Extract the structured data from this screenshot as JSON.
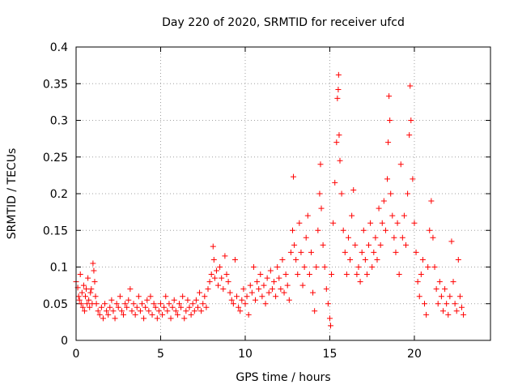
{
  "chart_data": {
    "type": "scatter",
    "title": "Day 220 of 2020, SRMTID for receiver ufcd",
    "xlabel": "GPS time / hours",
    "ylabel": "SRMTID / TECUs",
    "xlim": [
      0,
      24.5
    ],
    "ylim": [
      0,
      0.4
    ],
    "xticks": [
      0,
      5,
      10,
      15,
      20
    ],
    "xtick_labels": [
      "0",
      "5",
      "10",
      "15",
      "20"
    ],
    "yticks": [
      0,
      0.05,
      0.1,
      0.15,
      0.2,
      0.25,
      0.3,
      0.35,
      0.4
    ],
    "ytick_labels": [
      "0",
      "0.05",
      "0.1",
      "0.15",
      "0.2",
      "0.25",
      "0.3",
      "0.35",
      "0.4"
    ],
    "grid": true,
    "marker": "+",
    "color": "#ff0000",
    "series": [
      {
        "name": "SRMTID",
        "points": [
          [
            0.0,
            0.08
          ],
          [
            0.1,
            0.072
          ],
          [
            0.15,
            0.06
          ],
          [
            0.2,
            0.055
          ],
          [
            0.25,
            0.09
          ],
          [
            0.3,
            0.05
          ],
          [
            0.35,
            0.065
          ],
          [
            0.4,
            0.045
          ],
          [
            0.45,
            0.075
          ],
          [
            0.5,
            0.04
          ],
          [
            0.55,
            0.06
          ],
          [
            0.6,
            0.07
          ],
          [
            0.65,
            0.05
          ],
          [
            0.7,
            0.085
          ],
          [
            0.75,
            0.055
          ],
          [
            0.8,
            0.045
          ],
          [
            0.85,
            0.065
          ],
          [
            0.9,
            0.07
          ],
          [
            0.95,
            0.05
          ],
          [
            1.0,
            0.105
          ],
          [
            1.05,
            0.095
          ],
          [
            1.1,
            0.08
          ],
          [
            1.15,
            0.06
          ],
          [
            1.2,
            0.05
          ],
          [
            1.3,
            0.04
          ],
          [
            1.4,
            0.035
          ],
          [
            1.5,
            0.045
          ],
          [
            1.6,
            0.03
          ],
          [
            1.7,
            0.05
          ],
          [
            1.8,
            0.04
          ],
          [
            1.9,
            0.035
          ],
          [
            2.0,
            0.045
          ],
          [
            2.1,
            0.055
          ],
          [
            2.2,
            0.04
          ],
          [
            2.3,
            0.03
          ],
          [
            2.4,
            0.05
          ],
          [
            2.5,
            0.045
          ],
          [
            2.6,
            0.06
          ],
          [
            2.7,
            0.04
          ],
          [
            2.8,
            0.035
          ],
          [
            2.9,
            0.05
          ],
          [
            3.0,
            0.045
          ],
          [
            3.1,
            0.055
          ],
          [
            3.2,
            0.07
          ],
          [
            3.3,
            0.04
          ],
          [
            3.4,
            0.05
          ],
          [
            3.5,
            0.035
          ],
          [
            3.6,
            0.045
          ],
          [
            3.7,
            0.06
          ],
          [
            3.8,
            0.04
          ],
          [
            3.9,
            0.05
          ],
          [
            4.0,
            0.03
          ],
          [
            4.1,
            0.045
          ],
          [
            4.2,
            0.055
          ],
          [
            4.3,
            0.04
          ],
          [
            4.4,
            0.06
          ],
          [
            4.5,
            0.035
          ],
          [
            4.6,
            0.05
          ],
          [
            4.7,
            0.045
          ],
          [
            4.8,
            0.03
          ],
          [
            4.9,
            0.04
          ],
          [
            5.0,
            0.05
          ],
          [
            5.1,
            0.035
          ],
          [
            5.2,
            0.045
          ],
          [
            5.3,
            0.06
          ],
          [
            5.4,
            0.04
          ],
          [
            5.5,
            0.05
          ],
          [
            5.6,
            0.03
          ],
          [
            5.7,
            0.045
          ],
          [
            5.8,
            0.055
          ],
          [
            5.9,
            0.04
          ],
          [
            6.0,
            0.035
          ],
          [
            6.1,
            0.05
          ],
          [
            6.2,
            0.045
          ],
          [
            6.3,
            0.06
          ],
          [
            6.4,
            0.03
          ],
          [
            6.5,
            0.04
          ],
          [
            6.6,
            0.055
          ],
          [
            6.7,
            0.045
          ],
          [
            6.8,
            0.035
          ],
          [
            6.9,
            0.05
          ],
          [
            7.0,
            0.04
          ],
          [
            7.1,
            0.055
          ],
          [
            7.2,
            0.045
          ],
          [
            7.3,
            0.065
          ],
          [
            7.4,
            0.04
          ],
          [
            7.5,
            0.05
          ],
          [
            7.6,
            0.06
          ],
          [
            7.7,
            0.045
          ],
          [
            7.8,
            0.07
          ],
          [
            7.9,
            0.08
          ],
          [
            8.0,
            0.09
          ],
          [
            8.1,
            0.128
          ],
          [
            8.15,
            0.11
          ],
          [
            8.2,
            0.085
          ],
          [
            8.3,
            0.095
          ],
          [
            8.4,
            0.075
          ],
          [
            8.5,
            0.1
          ],
          [
            8.6,
            0.085
          ],
          [
            8.7,
            0.07
          ],
          [
            8.8,
            0.115
          ],
          [
            8.9,
            0.09
          ],
          [
            9.0,
            0.08
          ],
          [
            9.1,
            0.065
          ],
          [
            9.2,
            0.055
          ],
          [
            9.3,
            0.05
          ],
          [
            9.4,
            0.11
          ],
          [
            9.5,
            0.06
          ],
          [
            9.6,
            0.045
          ],
          [
            9.7,
            0.04
          ],
          [
            9.8,
            0.055
          ],
          [
            9.9,
            0.07
          ],
          [
            10.0,
            0.05
          ],
          [
            10.1,
            0.06
          ],
          [
            10.2,
            0.035
          ],
          [
            10.3,
            0.075
          ],
          [
            10.4,
            0.065
          ],
          [
            10.5,
            0.1
          ],
          [
            10.6,
            0.055
          ],
          [
            10.7,
            0.08
          ],
          [
            10.8,
            0.07
          ],
          [
            10.9,
            0.09
          ],
          [
            11.0,
            0.06
          ],
          [
            11.1,
            0.075
          ],
          [
            11.2,
            0.05
          ],
          [
            11.3,
            0.085
          ],
          [
            11.4,
            0.065
          ],
          [
            11.5,
            0.095
          ],
          [
            11.6,
            0.07
          ],
          [
            11.7,
            0.08
          ],
          [
            11.8,
            0.06
          ],
          [
            11.9,
            0.1
          ],
          [
            12.0,
            0.085
          ],
          [
            12.1,
            0.07
          ],
          [
            12.2,
            0.11
          ],
          [
            12.3,
            0.065
          ],
          [
            12.4,
            0.09
          ],
          [
            12.5,
            0.075
          ],
          [
            12.6,
            0.055
          ],
          [
            12.7,
            0.12
          ],
          [
            12.8,
            0.15
          ],
          [
            12.85,
            0.223
          ],
          [
            12.9,
            0.13
          ],
          [
            13.0,
            0.11
          ],
          [
            13.1,
            0.09
          ],
          [
            13.2,
            0.16
          ],
          [
            13.3,
            0.12
          ],
          [
            13.4,
            0.075
          ],
          [
            13.5,
            0.1
          ],
          [
            13.6,
            0.14
          ],
          [
            13.7,
            0.17
          ],
          [
            13.8,
            0.09
          ],
          [
            13.9,
            0.12
          ],
          [
            14.0,
            0.065
          ],
          [
            14.1,
            0.04
          ],
          [
            14.2,
            0.1
          ],
          [
            14.3,
            0.15
          ],
          [
            14.4,
            0.2
          ],
          [
            14.45,
            0.24
          ],
          [
            14.5,
            0.18
          ],
          [
            14.6,
            0.13
          ],
          [
            14.7,
            0.1
          ],
          [
            14.8,
            0.07
          ],
          [
            14.9,
            0.05
          ],
          [
            15.0,
            0.03
          ],
          [
            15.05,
            0.02
          ],
          [
            15.1,
            0.09
          ],
          [
            15.2,
            0.16
          ],
          [
            15.3,
            0.215
          ],
          [
            15.4,
            0.27
          ],
          [
            15.45,
            0.33
          ],
          [
            15.5,
            0.342
          ],
          [
            15.52,
            0.362
          ],
          [
            15.55,
            0.28
          ],
          [
            15.6,
            0.245
          ],
          [
            15.7,
            0.2
          ],
          [
            15.8,
            0.15
          ],
          [
            15.9,
            0.12
          ],
          [
            16.0,
            0.09
          ],
          [
            16.1,
            0.14
          ],
          [
            16.2,
            0.11
          ],
          [
            16.3,
            0.17
          ],
          [
            16.4,
            0.205
          ],
          [
            16.5,
            0.13
          ],
          [
            16.6,
            0.09
          ],
          [
            16.7,
            0.1
          ],
          [
            16.8,
            0.08
          ],
          [
            16.9,
            0.12
          ],
          [
            17.0,
            0.15
          ],
          [
            17.1,
            0.11
          ],
          [
            17.2,
            0.09
          ],
          [
            17.3,
            0.13
          ],
          [
            17.4,
            0.16
          ],
          [
            17.5,
            0.1
          ],
          [
            17.6,
            0.12
          ],
          [
            17.7,
            0.14
          ],
          [
            17.8,
            0.11
          ],
          [
            17.9,
            0.18
          ],
          [
            18.0,
            0.13
          ],
          [
            18.1,
            0.16
          ],
          [
            18.2,
            0.19
          ],
          [
            18.3,
            0.15
          ],
          [
            18.4,
            0.22
          ],
          [
            18.45,
            0.27
          ],
          [
            18.5,
            0.333
          ],
          [
            18.55,
            0.3
          ],
          [
            18.6,
            0.2
          ],
          [
            18.7,
            0.17
          ],
          [
            18.8,
            0.14
          ],
          [
            18.9,
            0.12
          ],
          [
            19.0,
            0.16
          ],
          [
            19.1,
            0.09
          ],
          [
            19.2,
            0.24
          ],
          [
            19.3,
            0.14
          ],
          [
            19.4,
            0.17
          ],
          [
            19.5,
            0.13
          ],
          [
            19.6,
            0.2
          ],
          [
            19.7,
            0.28
          ],
          [
            19.75,
            0.347
          ],
          [
            19.8,
            0.3
          ],
          [
            19.9,
            0.22
          ],
          [
            20.0,
            0.16
          ],
          [
            20.1,
            0.12
          ],
          [
            20.2,
            0.08
          ],
          [
            20.3,
            0.06
          ],
          [
            20.4,
            0.09
          ],
          [
            20.5,
            0.11
          ],
          [
            20.6,
            0.05
          ],
          [
            20.7,
            0.035
          ],
          [
            20.8,
            0.1
          ],
          [
            20.9,
            0.15
          ],
          [
            21.0,
            0.19
          ],
          [
            21.1,
            0.14
          ],
          [
            21.2,
            0.1
          ],
          [
            21.3,
            0.07
          ],
          [
            21.4,
            0.05
          ],
          [
            21.5,
            0.08
          ],
          [
            21.6,
            0.06
          ],
          [
            21.7,
            0.04
          ],
          [
            21.8,
            0.07
          ],
          [
            21.9,
            0.05
          ],
          [
            22.0,
            0.035
          ],
          [
            22.1,
            0.06
          ],
          [
            22.2,
            0.135
          ],
          [
            22.3,
            0.08
          ],
          [
            22.4,
            0.05
          ],
          [
            22.5,
            0.04
          ],
          [
            22.6,
            0.11
          ],
          [
            22.7,
            0.06
          ],
          [
            22.8,
            0.045
          ],
          [
            22.9,
            0.035
          ]
        ]
      }
    ]
  }
}
